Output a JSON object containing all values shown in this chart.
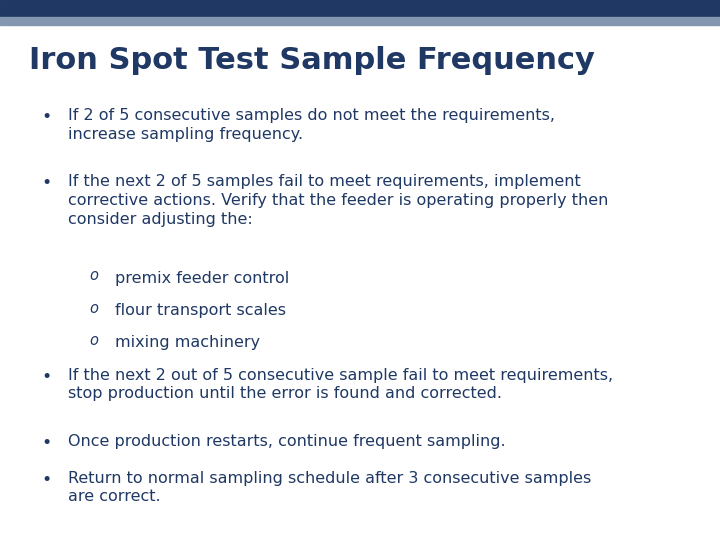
{
  "title": "Iron Spot Test Sample Frequency",
  "title_color": "#1F3864",
  "title_fontsize": 22,
  "background_color": "#FFFFFF",
  "top_bar1_color": "#1F3864",
  "top_bar2_color": "#8496B0",
  "text_color": "#1F3864",
  "content_fontsize": 11.5,
  "bullets": [
    {
      "level": 1,
      "text": "If 2 of 5 consecutive samples do not meet the requirements,\nincrease sampling frequency."
    },
    {
      "level": 1,
      "text": "If the next 2 of 5 samples fail to meet requirements, implement\ncorrective actions. Verify that the feeder is operating properly then\nconsider adjusting the:"
    },
    {
      "level": 2,
      "text": "premix feeder control"
    },
    {
      "level": 2,
      "text": "flour transport scales"
    },
    {
      "level": 2,
      "text": "mixing machinery"
    },
    {
      "level": 1,
      "text": "If the next 2 out of 5 consecutive sample fail to meet requirements,\nstop production until the error is found and corrected."
    },
    {
      "level": 1,
      "text": "Once production restarts, continue frequent sampling."
    },
    {
      "level": 1,
      "text": "Return to normal sampling schedule after 3 consecutive samples\nare correct."
    }
  ]
}
